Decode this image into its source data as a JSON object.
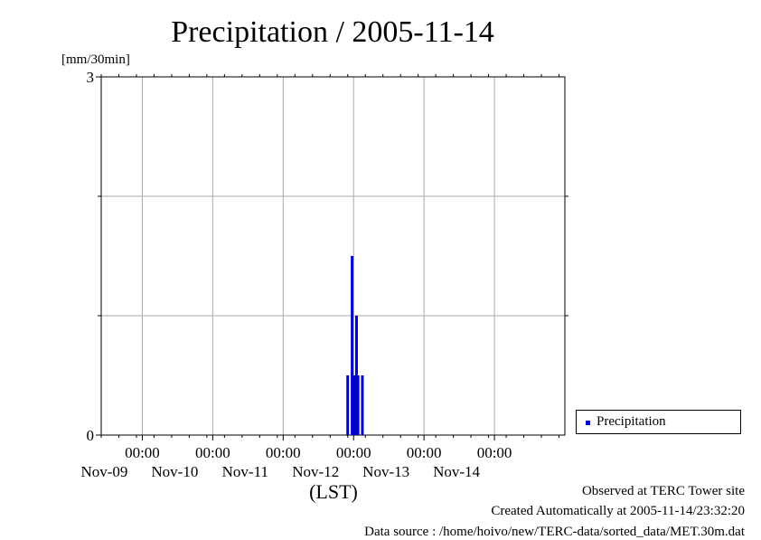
{
  "chart_data": {
    "type": "bar",
    "title": "Precipitation / 2005-11-14",
    "ylabel": "[mm/30min]",
    "xlabel": "(LST)",
    "ylim": [
      0,
      3
    ],
    "y_tick_labels": [
      "0",
      "3"
    ],
    "x_range": [
      "2005-11-08 10:00",
      "2005-11-14 24:00"
    ],
    "x_ticks": [
      {
        "date": "2005-11-09 00:00",
        "time_label": "00:00",
        "date_label": "Nov-09"
      },
      {
        "date": "2005-11-10 00:00",
        "time_label": "00:00",
        "date_label": "Nov-10"
      },
      {
        "date": "2005-11-11 00:00",
        "time_label": "00:00",
        "date_label": "Nov-11"
      },
      {
        "date": "2005-11-12 00:00",
        "time_label": "00:00",
        "date_label": "Nov-12"
      },
      {
        "date": "2005-11-13 00:00",
        "time_label": "00:00",
        "date_label": "Nov-13"
      },
      {
        "date": "2005-11-14 00:00",
        "time_label": "00:00",
        "date_label": "Nov-14"
      }
    ],
    "grid": true,
    "legend_position": "right",
    "series": [
      {
        "name": "Precipitation",
        "color": "#0000cc",
        "points": [
          {
            "x": "2005-11-11 22:00",
            "y": 0.5
          },
          {
            "x": "2005-11-11 23:30",
            "y": 1.5
          },
          {
            "x": "2005-11-12 00:00",
            "y": 0.5
          },
          {
            "x": "2005-11-12 00:30",
            "y": 0.5
          },
          {
            "x": "2005-11-12 01:00",
            "y": 1.0
          },
          {
            "x": "2005-11-12 01:30",
            "y": 0.5
          },
          {
            "x": "2005-11-12 03:00",
            "y": 0.5
          }
        ]
      }
    ]
  },
  "footer": {
    "observed": "Observed at TERC Tower site",
    "created": "Created Automatically at 2005-11-14/23:32:20",
    "source": "Data source : /home/hoivo/new/TERC-data/sorted_data/MET.30m.dat"
  }
}
